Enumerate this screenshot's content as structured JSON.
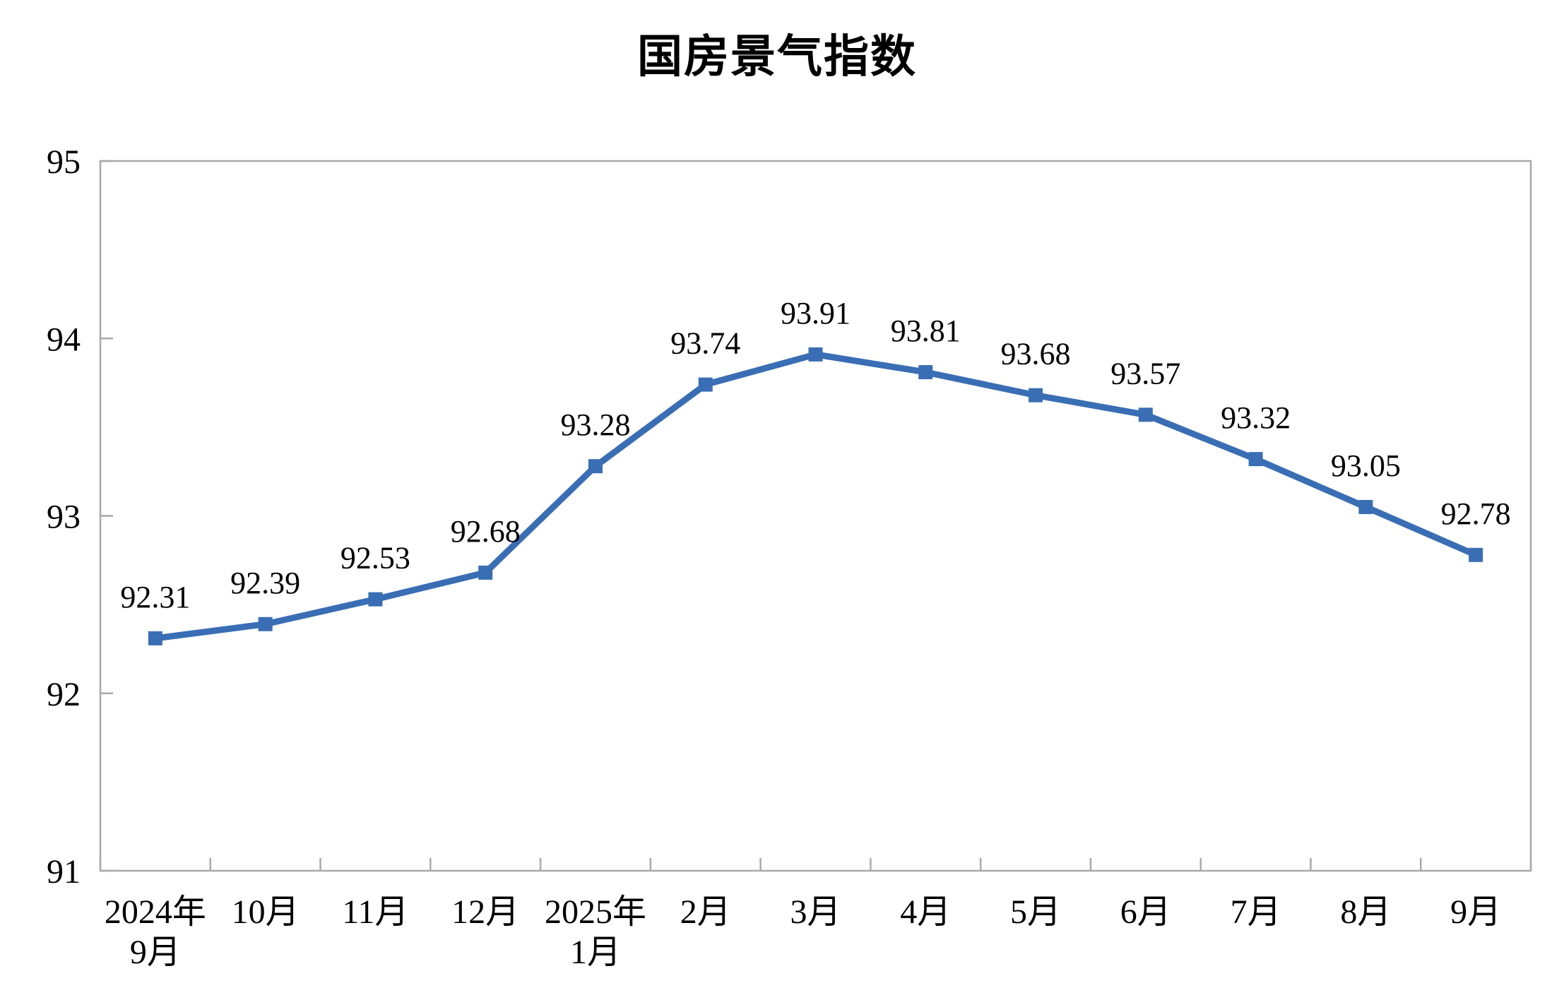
{
  "chart_data": {
    "type": "line",
    "title": "国房景气指数",
    "categories": [
      [
        "2024年",
        "9月"
      ],
      [
        "10月"
      ],
      [
        "11月"
      ],
      [
        "12月"
      ],
      [
        "2025年",
        "1月"
      ],
      [
        "2月"
      ],
      [
        "3月"
      ],
      [
        "4月"
      ],
      [
        "5月"
      ],
      [
        "6月"
      ],
      [
        "7月"
      ],
      [
        "8月"
      ],
      [
        "9月"
      ]
    ],
    "series": [
      {
        "name": "国房景气指数",
        "values": [
          92.31,
          92.39,
          92.53,
          92.68,
          93.28,
          93.74,
          93.91,
          93.81,
          93.68,
          93.57,
          93.32,
          93.05,
          92.78
        ]
      }
    ],
    "data_labels": [
      "92.31",
      "92.39",
      "92.53",
      "92.68",
      "93.28",
      "93.74",
      "93.91",
      "93.81",
      "93.68",
      "93.57",
      "93.32",
      "93.05",
      "92.78"
    ],
    "ylim": [
      91,
      95
    ],
    "yticks": [
      91,
      92,
      93,
      94,
      95
    ],
    "xlabel": "",
    "ylabel": "",
    "grid": false,
    "legend_position": "none",
    "marker": "square",
    "colors": {
      "line": "#3A6EB4",
      "marker": "#3A6EB4",
      "axis_border": "#A9A9A9",
      "text": "#000000",
      "background": "#FFFFFF"
    }
  }
}
